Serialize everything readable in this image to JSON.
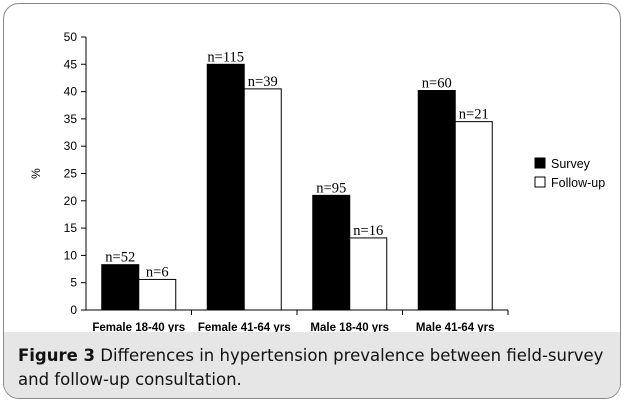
{
  "caption": {
    "label": "Figure 3",
    "text": " Differences in hypertension prevalence between field-survey and follow-up consultation."
  },
  "chart_data": {
    "type": "bar",
    "ylabel": "%",
    "xlabel": "",
    "ylim": [
      0,
      50
    ],
    "yticks": [
      0,
      5,
      10,
      15,
      20,
      25,
      30,
      35,
      40,
      45,
      50
    ],
    "categories": [
      "Female 18-40 yrs",
      "Female 41-64 yrs",
      "Male 18-40 yrs",
      "Male 41-64 yrs"
    ],
    "series": [
      {
        "name": "Survey",
        "values": [
          8.3,
          45.0,
          21.0,
          40.2
        ],
        "labels": [
          "n=52",
          "n=115",
          "n=95",
          "n=60"
        ],
        "color": "#000000"
      },
      {
        "name": "Follow-up",
        "values": [
          5.6,
          40.5,
          13.2,
          34.5
        ],
        "labels": [
          "n=6",
          "n=39",
          "n=16",
          "n=21"
        ],
        "color": "#ffffff"
      }
    ],
    "legend": "right",
    "grid": false
  }
}
